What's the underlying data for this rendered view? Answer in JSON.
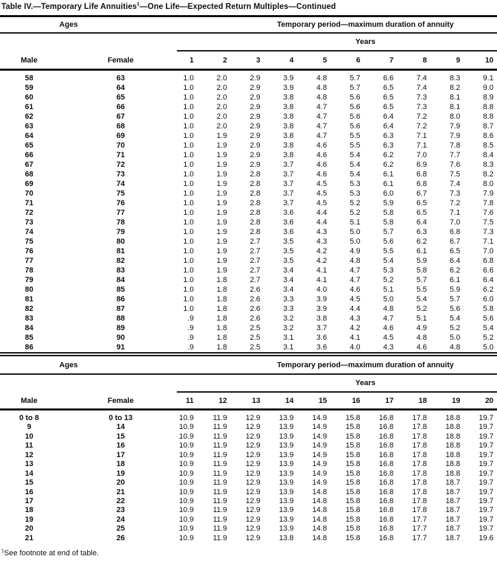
{
  "title": {
    "part1": "Table IV.—Temporary Life Annuities",
    "footnote_marker": "1",
    "part2": "—One Life—Expected Return Multiples—Continued"
  },
  "footnote": {
    "marker": "1",
    "text": "See footnote at end of table."
  },
  "colors": {
    "text": "#0e0e0e",
    "rule": "#0e0e0e",
    "background": "#ffffff"
  },
  "sections": [
    {
      "ages_label": "Ages",
      "period_label": "Temporary period—maximum duration of annuity",
      "years_label": "Years",
      "male_label": "Male",
      "female_label": "Female",
      "year_columns": [
        "1",
        "2",
        "3",
        "4",
        "5",
        "6",
        "7",
        "8",
        "9",
        "10"
      ],
      "rows": [
        {
          "male": "58",
          "female": "63",
          "values": [
            "1.0",
            "2.0",
            "2.9",
            "3.9",
            "4.8",
            "5.7",
            "6.6",
            "7.4",
            "8.3",
            "9.1"
          ]
        },
        {
          "male": "59",
          "female": "64",
          "values": [
            "1.0",
            "2.0",
            "2.9",
            "3.9",
            "4.8",
            "5.7",
            "6.5",
            "7.4",
            "8.2",
            "9.0"
          ]
        },
        {
          "male": "60",
          "female": "65",
          "values": [
            "1.0",
            "2.0",
            "2.9",
            "3.8",
            "4.8",
            "5.6",
            "6.5",
            "7.3",
            "8.1",
            "8.9"
          ]
        },
        {
          "male": "61",
          "female": "66",
          "values": [
            "1.0",
            "2.0",
            "2.9",
            "3.8",
            "4.7",
            "5.6",
            "6.5",
            "7.3",
            "8.1",
            "8.8"
          ]
        },
        {
          "male": "62",
          "female": "67",
          "values": [
            "1.0",
            "2.0",
            "2.9",
            "3.8",
            "4.7",
            "5.6",
            "6.4",
            "7.2",
            "8.0",
            "8.8"
          ]
        },
        {
          "male": "63",
          "female": "68",
          "values": [
            "1.0",
            "2.0",
            "2.9",
            "3.8",
            "4.7",
            "5.6",
            "6.4",
            "7.2",
            "7.9",
            "8.7"
          ]
        },
        {
          "male": "64",
          "female": "69",
          "values": [
            "1.0",
            "1.9",
            "2.9",
            "3.8",
            "4.7",
            "5.5",
            "6.3",
            "7.1",
            "7.9",
            "8.6"
          ]
        },
        {
          "male": "65",
          "female": "70",
          "values": [
            "1.0",
            "1.9",
            "2.9",
            "3.8",
            "4.6",
            "5.5",
            "6.3",
            "7.1",
            "7.8",
            "8.5"
          ]
        },
        {
          "male": "66",
          "female": "71",
          "values": [
            "1.0",
            "1.9",
            "2.9",
            "3.8",
            "4.6",
            "5.4",
            "6.2",
            "7.0",
            "7.7",
            "8.4"
          ]
        },
        {
          "male": "67",
          "female": "72",
          "values": [
            "1.0",
            "1.9",
            "2.9",
            "3.7",
            "4.6",
            "5.4",
            "6.2",
            "6.9",
            "7.6",
            "8.3"
          ]
        },
        {
          "male": "68",
          "female": "73",
          "values": [
            "1.0",
            "1.9",
            "2.8",
            "3.7",
            "4.6",
            "5.4",
            "6.1",
            "6.8",
            "7.5",
            "8.2"
          ]
        },
        {
          "male": "69",
          "female": "74",
          "values": [
            "1.0",
            "1.9",
            "2.8",
            "3.7",
            "4.5",
            "5.3",
            "6.1",
            "6.8",
            "7.4",
            "8.0"
          ]
        },
        {
          "male": "70",
          "female": "75",
          "values": [
            "1.0",
            "1.9",
            "2.8",
            "3.7",
            "4.5",
            "5.3",
            "6.0",
            "6.7",
            "7.3",
            "7.9"
          ]
        },
        {
          "male": "71",
          "female": "76",
          "values": [
            "1.0",
            "1.9",
            "2.8",
            "3.7",
            "4.5",
            "5.2",
            "5.9",
            "6.5",
            "7.2",
            "7.8"
          ]
        },
        {
          "male": "72",
          "female": "77",
          "values": [
            "1.0",
            "1.9",
            "2.8",
            "3.6",
            "4.4",
            "5.2",
            "5.8",
            "6.5",
            "7.1",
            "7.6"
          ]
        },
        {
          "male": "73",
          "female": "78",
          "values": [
            "1.0",
            "1.9",
            "2.8",
            "3.6",
            "4.4",
            "5.1",
            "5.8",
            "6.4",
            "7.0",
            "7.5"
          ]
        },
        {
          "male": "74",
          "female": "79",
          "values": [
            "1.0",
            "1.9",
            "2.8",
            "3.6",
            "4.3",
            "5.0",
            "5.7",
            "6.3",
            "6.8",
            "7.3"
          ]
        },
        {
          "male": "75",
          "female": "80",
          "values": [
            "1.0",
            "1.9",
            "2.7",
            "3.5",
            "4.3",
            "5.0",
            "5.6",
            "6.2",
            "6.7",
            "7.1"
          ]
        },
        {
          "male": "76",
          "female": "81",
          "values": [
            "1.0",
            "1.9",
            "2.7",
            "3.5",
            "4.2",
            "4.9",
            "5.5",
            "6.1",
            "6.5",
            "7.0"
          ]
        },
        {
          "male": "77",
          "female": "82",
          "values": [
            "1.0",
            "1.9",
            "2.7",
            "3.5",
            "4.2",
            "4.8",
            "5.4",
            "5.9",
            "6.4",
            "6.8"
          ]
        },
        {
          "male": "78",
          "female": "83",
          "values": [
            "1.0",
            "1.9",
            "2.7",
            "3.4",
            "4.1",
            "4.7",
            "5.3",
            "5.8",
            "6.2",
            "6.6"
          ]
        },
        {
          "male": "79",
          "female": "84",
          "values": [
            "1.0",
            "1.8",
            "2.7",
            "3.4",
            "4.1",
            "4.7",
            "5.2",
            "5.7",
            "6.1",
            "6.4"
          ]
        },
        {
          "male": "80",
          "female": "85",
          "values": [
            "1.0",
            "1.8",
            "2.6",
            "3.4",
            "4.0",
            "4.6",
            "5.1",
            "5.5",
            "5.9",
            "6.2"
          ]
        },
        {
          "male": "81",
          "female": "86",
          "values": [
            "1.0",
            "1.8",
            "2.6",
            "3.3",
            "3.9",
            "4.5",
            "5.0",
            "5.4",
            "5.7",
            "6.0"
          ]
        },
        {
          "male": "82",
          "female": "87",
          "values": [
            "1.0",
            "1.8",
            "2.6",
            "3.3",
            "3.9",
            "4.4",
            "4.8",
            "5.2",
            "5.6",
            "5.8"
          ]
        },
        {
          "male": "83",
          "female": "88",
          "values": [
            ".9",
            "1.8",
            "2.6",
            "3.2",
            "3.8",
            "4.3",
            "4.7",
            "5.1",
            "5.4",
            "5.6"
          ]
        },
        {
          "male": "84",
          "female": "89",
          "values": [
            ".9",
            "1.8",
            "2.5",
            "3.2",
            "3.7",
            "4.2",
            "4.6",
            "4.9",
            "5.2",
            "5.4"
          ]
        },
        {
          "male": "85",
          "female": "90",
          "values": [
            ".9",
            "1.8",
            "2.5",
            "3.1",
            "3.6",
            "4.1",
            "4.5",
            "4.8",
            "5.0",
            "5.2"
          ]
        },
        {
          "male": "86",
          "female": "91",
          "values": [
            ".9",
            "1.8",
            "2.5",
            "3.1",
            "3.6",
            "4.0",
            "4.3",
            "4.6",
            "4.8",
            "5.0"
          ]
        }
      ]
    },
    {
      "ages_label": "Ages",
      "period_label": "Temporary period—maximum duration of annuity",
      "years_label": "Years",
      "male_label": "Male",
      "female_label": "Female",
      "year_columns": [
        "11",
        "12",
        "13",
        "14",
        "15",
        "16",
        "17",
        "18",
        "19",
        "20"
      ],
      "rows": [
        {
          "male": "0 to 8",
          "female": "0 to 13",
          "values": [
            "10.9",
            "11.9",
            "12.9",
            "13.9",
            "14.9",
            "15.8",
            "16.8",
            "17.8",
            "18.8",
            "19.7"
          ]
        },
        {
          "male": "9",
          "female": "14",
          "values": [
            "10.9",
            "11.9",
            "12.9",
            "13.9",
            "14.9",
            "15.8",
            "16.8",
            "17.8",
            "18.8",
            "19.7"
          ]
        },
        {
          "male": "10",
          "female": "15",
          "values": [
            "10.9",
            "11.9",
            "12.9",
            "13.9",
            "14.9",
            "15.8",
            "16.8",
            "17.8",
            "18.8",
            "19.7"
          ]
        },
        {
          "male": "11",
          "female": "16",
          "values": [
            "10.9",
            "11.9",
            "12.9",
            "13.9",
            "14.9",
            "15.8",
            "16.8",
            "17.8",
            "18.8",
            "19.7"
          ]
        },
        {
          "male": "12",
          "female": "17",
          "values": [
            "10.9",
            "11.9",
            "12.9",
            "13.9",
            "14.9",
            "15.8",
            "16.8",
            "17.8",
            "18.8",
            "19.7"
          ]
        },
        {
          "male": "13",
          "female": "18",
          "values": [
            "10.9",
            "11.9",
            "12.9",
            "13.9",
            "14.9",
            "15.8",
            "16.8",
            "17.8",
            "18.8",
            "19.7"
          ]
        },
        {
          "male": "14",
          "female": "19",
          "values": [
            "10.9",
            "11.9",
            "12.9",
            "13.9",
            "14.9",
            "15.8",
            "16.8",
            "17.8",
            "18.8",
            "19.7"
          ]
        },
        {
          "male": "15",
          "female": "20",
          "values": [
            "10.9",
            "11.9",
            "12.9",
            "13.9",
            "14.9",
            "15.8",
            "16.8",
            "17.8",
            "18.7",
            "19.7"
          ]
        },
        {
          "male": "16",
          "female": "21",
          "values": [
            "10.9",
            "11.9",
            "12.9",
            "13.9",
            "14.8",
            "15.8",
            "16.8",
            "17.8",
            "18.7",
            "19.7"
          ]
        },
        {
          "male": "17",
          "female": "22",
          "values": [
            "10.9",
            "11.9",
            "12.9",
            "13.9",
            "14.8",
            "15.8",
            "16.8",
            "17.8",
            "18.7",
            "19.7"
          ]
        },
        {
          "male": "18",
          "female": "23",
          "values": [
            "10.9",
            "11.9",
            "12.9",
            "13.9",
            "14.8",
            "15.8",
            "16.8",
            "17.8",
            "18.7",
            "19.7"
          ]
        },
        {
          "male": "19",
          "female": "24",
          "values": [
            "10.9",
            "11.9",
            "12.9",
            "13.9",
            "14.8",
            "15.8",
            "16.8",
            "17.7",
            "18.7",
            "19.7"
          ]
        },
        {
          "male": "20",
          "female": "25",
          "values": [
            "10.9",
            "11.9",
            "12.9",
            "13.9",
            "14.8",
            "15.8",
            "16.8",
            "17.7",
            "18.7",
            "19.7"
          ]
        },
        {
          "male": "21",
          "female": "26",
          "values": [
            "10.9",
            "11.9",
            "12.9",
            "13.8",
            "14.8",
            "15.8",
            "16.8",
            "17.7",
            "18.7",
            "19.6"
          ]
        }
      ]
    }
  ]
}
